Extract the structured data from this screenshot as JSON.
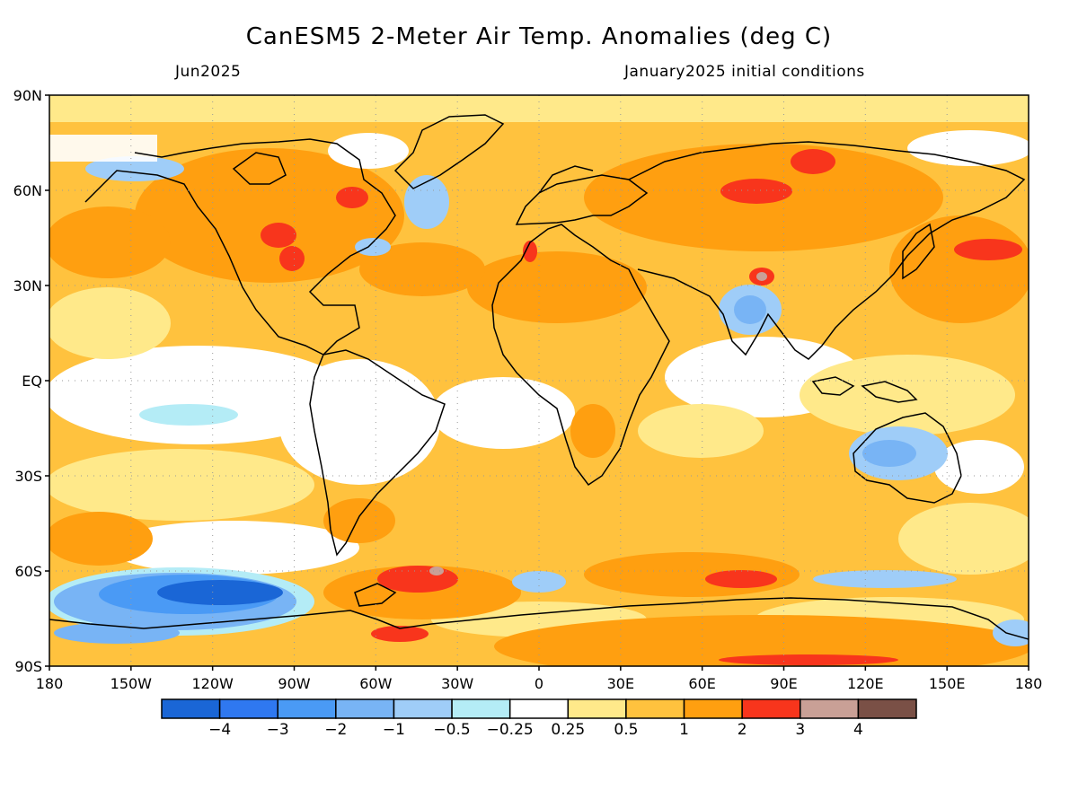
{
  "title": "CanESM5 2-Meter Air Temp. Anomalies (deg C)",
  "subtitle_left": "Jun2025",
  "subtitle_right": "January2025 initial conditions",
  "map": {
    "type": "global-anomaly-map",
    "lon_range": [
      -180,
      180
    ],
    "lat_range": [
      -90,
      90
    ],
    "grid": true,
    "lat_ticks": [
      {
        "value": 90,
        "label": "90N"
      },
      {
        "value": 60,
        "label": "60N"
      },
      {
        "value": 30,
        "label": "30N"
      },
      {
        "value": 0,
        "label": "EQ"
      },
      {
        "value": -30,
        "label": "30S"
      },
      {
        "value": -60,
        "label": "60S"
      },
      {
        "value": -90,
        "label": "90S"
      }
    ],
    "lon_ticks": [
      {
        "value": -180,
        "label": "180"
      },
      {
        "value": -150,
        "label": "150W"
      },
      {
        "value": -120,
        "label": "120W"
      },
      {
        "value": -90,
        "label": "90W"
      },
      {
        "value": -60,
        "label": "60W"
      },
      {
        "value": -30,
        "label": "30W"
      },
      {
        "value": 0,
        "label": "0"
      },
      {
        "value": 30,
        "label": "30E"
      },
      {
        "value": 60,
        "label": "60E"
      },
      {
        "value": 90,
        "label": "90E"
      },
      {
        "value": 120,
        "label": "120E"
      },
      {
        "value": 150,
        "label": "150E"
      },
      {
        "value": 180,
        "label": "180"
      }
    ]
  },
  "colorbar": {
    "colors": [
      "#1a66d6",
      "#2f78f0",
      "#4a9af5",
      "#78b4f5",
      "#9fcdf8",
      "#b4ecf6",
      "#ffffff",
      "#ffe98a",
      "#ffc23e",
      "#ff9f10",
      "#f8351c",
      "#c9a096",
      "#7a5046"
    ],
    "labels": [
      "-4",
      "-3",
      "-2",
      "-1",
      "-0.5",
      "-0.25",
      "0.25",
      "0.5",
      "1",
      "2",
      "3",
      "4"
    ]
  }
}
